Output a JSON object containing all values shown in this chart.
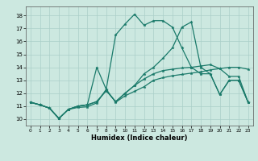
{
  "xlabel": "Humidex (Indice chaleur)",
  "bg_color": "#cce8e0",
  "line_color": "#1a7a6a",
  "grid_color": "#aacfc8",
  "xlim": [
    -0.5,
    23.5
  ],
  "ylim": [
    9.5,
    18.7
  ],
  "yticks": [
    10,
    11,
    12,
    13,
    14,
    15,
    16,
    17,
    18
  ],
  "xticks": [
    0,
    1,
    2,
    3,
    4,
    5,
    6,
    7,
    8,
    9,
    10,
    11,
    12,
    13,
    14,
    15,
    16,
    17,
    18,
    19,
    20,
    21,
    22,
    23
  ],
  "line1_x": [
    0,
    1,
    2,
    3,
    4,
    5,
    6,
    7,
    8,
    9,
    10,
    11,
    12,
    13,
    14,
    15,
    16,
    17,
    18,
    19,
    20,
    21,
    22,
    23
  ],
  "line1_y": [
    11.3,
    11.1,
    10.85,
    10.05,
    10.75,
    10.9,
    10.95,
    11.25,
    12.3,
    11.3,
    11.8,
    12.15,
    12.5,
    13.0,
    13.2,
    13.35,
    13.45,
    13.55,
    13.65,
    13.8,
    13.9,
    14.0,
    14.0,
    13.85
  ],
  "line2_x": [
    0,
    1,
    2,
    3,
    4,
    5,
    6,
    7,
    8,
    9,
    10,
    11,
    12,
    13,
    14,
    15,
    16,
    17,
    18,
    19,
    20,
    21,
    22,
    23
  ],
  "line2_y": [
    11.3,
    11.1,
    10.85,
    10.05,
    10.75,
    11.0,
    11.1,
    11.35,
    12.2,
    11.35,
    12.0,
    12.6,
    13.1,
    13.5,
    13.75,
    13.85,
    13.95,
    14.0,
    14.1,
    14.2,
    13.9,
    13.3,
    13.3,
    11.3
  ],
  "line3_x": [
    0,
    1,
    2,
    3,
    4,
    5,
    6,
    7,
    8,
    9,
    10,
    11,
    12,
    13,
    14,
    15,
    16,
    17,
    18,
    19,
    20,
    21,
    22,
    23
  ],
  "line3_y": [
    11.3,
    11.1,
    10.85,
    10.05,
    10.75,
    11.0,
    11.1,
    11.35,
    12.2,
    11.35,
    12.0,
    12.6,
    13.5,
    14.0,
    14.7,
    15.5,
    17.1,
    17.5,
    14.0,
    13.5,
    11.9,
    13.0,
    13.0,
    11.3
  ],
  "line4_x": [
    0,
    1,
    2,
    3,
    4,
    5,
    6,
    7,
    8,
    9,
    10,
    11,
    12,
    13,
    14,
    15,
    16,
    17,
    18,
    19,
    20,
    21,
    22,
    23
  ],
  "line4_y": [
    11.3,
    11.1,
    10.85,
    10.05,
    10.75,
    11.0,
    11.1,
    14.0,
    12.3,
    16.5,
    17.35,
    18.1,
    17.25,
    17.6,
    17.6,
    17.1,
    15.5,
    14.0,
    13.5,
    13.5,
    11.9,
    13.0,
    13.0,
    11.3
  ],
  "markersize": 2.5,
  "linewidth": 0.9
}
